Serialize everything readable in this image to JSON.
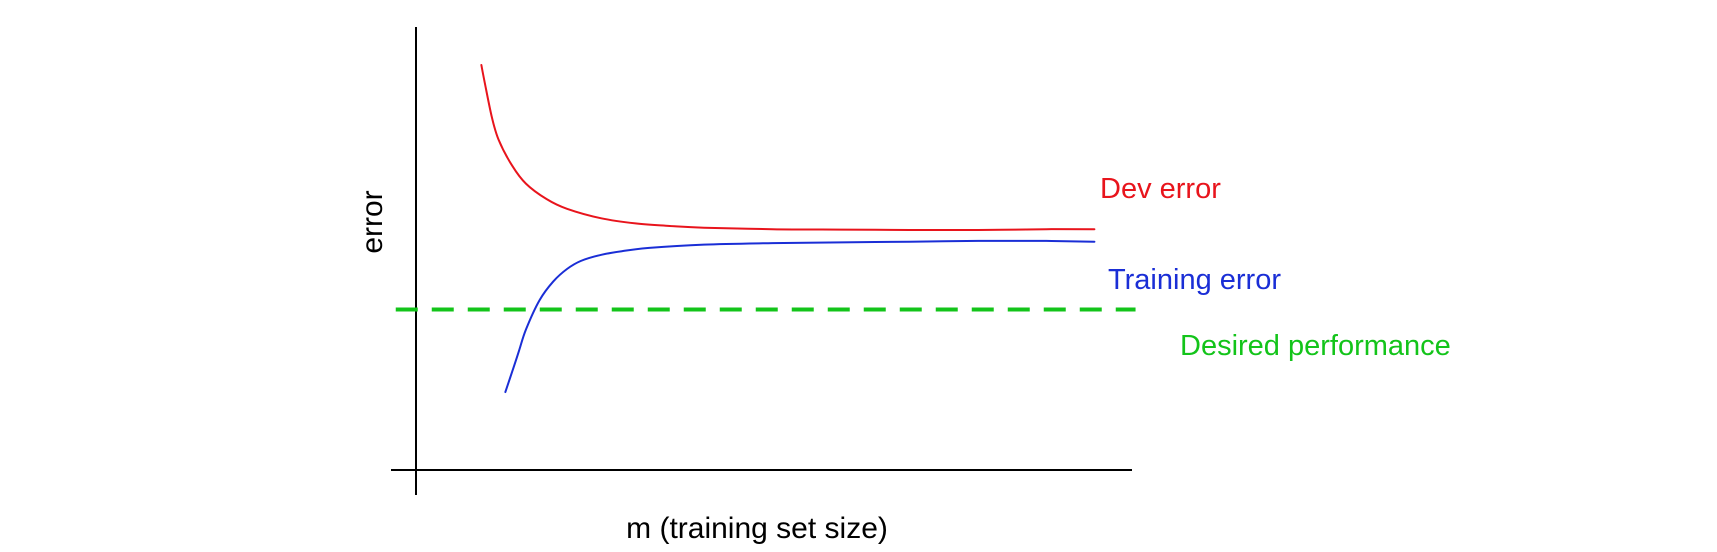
{
  "chart_data": {
    "type": "line",
    "title": "",
    "xlabel": "m (training set size)",
    "ylabel": "error",
    "xlim": [
      0,
      100
    ],
    "ylim": [
      0,
      100
    ],
    "grid": false,
    "legend": "inline-right",
    "series": [
      {
        "name": "Dev error",
        "color": "#e8141c",
        "x": [
          7.5,
          8,
          9,
          10,
          12,
          14,
          17,
          20,
          25,
          30,
          35,
          40,
          50,
          60,
          70,
          80,
          90,
          97
        ],
        "y": [
          100.0,
          95.1,
          86.0,
          79.6,
          72.4,
          67.5,
          63.3,
          60.6,
          58.0,
          56.6,
          55.9,
          55.4,
          55.0,
          54.9,
          54.8,
          54.8,
          55.0,
          55.0
        ]
      },
      {
        "name": "Training error",
        "color": "#1a2ed6",
        "x": [
          11,
          12,
          13,
          14,
          16,
          18,
          20,
          22,
          25,
          28,
          32,
          40,
          50,
          60,
          70,
          80,
          90,
          97
        ],
        "y": [
          10.4,
          16.0,
          21.7,
          27.5,
          35.6,
          40.7,
          44.1,
          46.3,
          48.0,
          49.0,
          49.9,
          50.8,
          51.2,
          51.4,
          51.6,
          51.8,
          51.8,
          51.6
        ]
      },
      {
        "name": "Desired performance",
        "color": "#13c41a",
        "x": [
          -5,
          103
        ],
        "y": [
          33,
          33
        ]
      }
    ]
  }
}
